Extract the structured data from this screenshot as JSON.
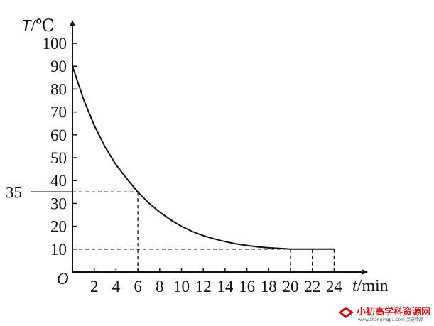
{
  "chart_data": {
    "type": "line",
    "x_axis": {
      "label_var": "t",
      "label_unit": "/min",
      "ticks": [
        2,
        4,
        6,
        8,
        10,
        12,
        14,
        16,
        18,
        20,
        22,
        24
      ],
      "range": [
        0,
        24
      ]
    },
    "y_axis": {
      "label_var": "T",
      "label_unit": "/℃",
      "ticks": [
        10,
        20,
        30,
        40,
        50,
        60,
        70,
        80,
        90,
        100
      ],
      "range": [
        0,
        100
      ],
      "extra_tick": 35
    },
    "origin_label": "O",
    "series": [
      {
        "x": [
          0,
          1,
          2,
          3,
          4,
          5,
          6,
          7,
          8,
          9,
          10,
          11,
          12,
          13,
          14,
          15,
          16,
          17,
          18,
          19,
          20,
          21,
          22,
          23,
          24
        ],
        "y": [
          90,
          75.8,
          64.1,
          54.6,
          46.9,
          40.7,
          35,
          30.2,
          26.2,
          22.8,
          20,
          17.7,
          15.9,
          14.5,
          13.3,
          12.3,
          11.6,
          11,
          10.6,
          10.3,
          10,
          10,
          10,
          10,
          10
        ]
      }
    ],
    "reference_lines": [
      {
        "x": 6,
        "y": 35
      },
      {
        "x": 20,
        "y": 10
      },
      {
        "x": 22,
        "y": 10
      },
      {
        "x": 24,
        "y": 10
      }
    ],
    "grid": false
  },
  "watermark": {
    "main": "小初高学科资源网",
    "sub": "www.zhangingpu.com 灵迹精品"
  }
}
